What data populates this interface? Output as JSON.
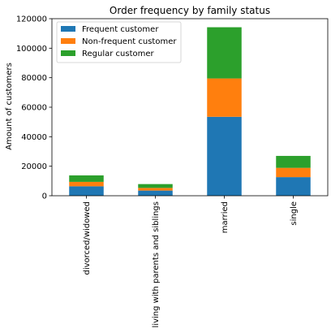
{
  "chart_data": {
    "type": "bar",
    "stacked": true,
    "title": "Order frequency by family status",
    "xlabel": "",
    "ylabel": "Amount of customers",
    "categories": [
      "divorced/widowed",
      "living with parents and siblings",
      "married",
      "single"
    ],
    "series": [
      {
        "name": "Frequent customer",
        "color": "#1f77b4",
        "values": [
          6400,
          3500,
          53500,
          12600
        ]
      },
      {
        "name": "Non-frequent customer",
        "color": "#ff7f0e",
        "values": [
          3000,
          1800,
          26000,
          6300
        ]
      },
      {
        "name": "Regular customer",
        "color": "#2ca02c",
        "values": [
          4400,
          2600,
          34700,
          8100
        ]
      }
    ],
    "ylim": [
      0,
      120000
    ],
    "yticks": [
      "0",
      "20000",
      "40000",
      "60000",
      "80000",
      "100000",
      "120000"
    ],
    "ytick_values": [
      0,
      20000,
      40000,
      60000,
      80000,
      100000,
      120000
    ],
    "legend": "top-left",
    "grid": false
  }
}
